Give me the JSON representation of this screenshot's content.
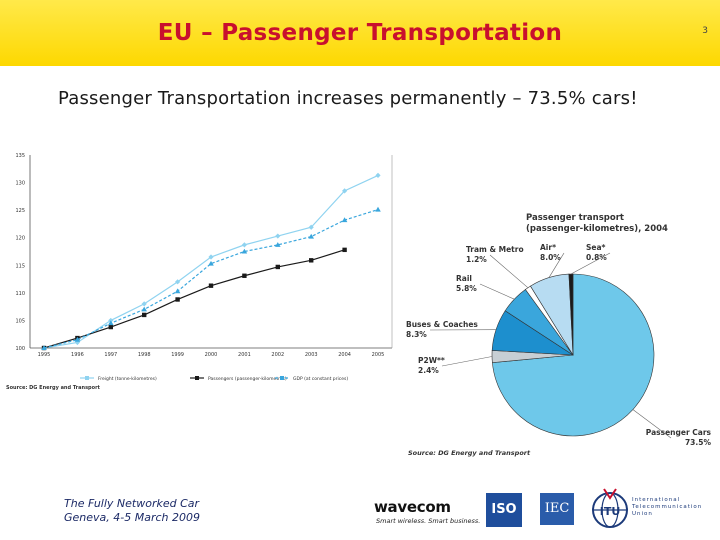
{
  "header": {
    "title": "EU – Passenger Transportation",
    "slide_number": "3"
  },
  "subtitle": "Passenger Transportation increases permanently – 73.5% cars!",
  "footer": {
    "event_line1": "The Fully Networked Car",
    "event_line2": "Geneva, 4-5 March 2009",
    "wavecom_name": "wavecom",
    "wavecom_tagline": "Smart wireless. Smart business.",
    "iso_label": "ISO",
    "iec_label": "IEC",
    "itu_label": "ITU",
    "itu_text": [
      "International",
      "Telecommunication",
      "Union"
    ]
  },
  "colors": {
    "header_bg": "#fdd800",
    "title": "#c8102e",
    "freight": "#8fd3f0",
    "passengers": "#1a1a1a",
    "gdp": "#39a6dd"
  },
  "chart_data": [
    {
      "type": "line",
      "title": "",
      "x": [
        "1995",
        "1996",
        "1997",
        "1998",
        "1999",
        "2000",
        "2001",
        "2002",
        "2003",
        "2004",
        "2005"
      ],
      "ylim": [
        100,
        135
      ],
      "yticks": [
        100,
        105,
        110,
        115,
        120,
        125,
        130,
        135
      ],
      "grid": false,
      "legend_placement": "bottom",
      "source": "Source: DG Energy and Transport",
      "series": [
        {
          "name": "Freight (tonne-kilometres)",
          "color": "#8fd3f0",
          "marker": "diamond",
          "values": [
            100,
            101,
            105,
            108,
            112,
            116.5,
            118.7,
            120.3,
            121.9,
            128.5,
            131.3
          ]
        },
        {
          "name": "Passengers (passenger-kilometres)",
          "color": "#1a1a1a",
          "marker": "square",
          "values": [
            100,
            101.8,
            103.8,
            106,
            108.8,
            111.3,
            113.1,
            114.7,
            115.9,
            117.8,
            null
          ]
        },
        {
          "name": "GDP (at constant prices)",
          "color": "#39a6dd",
          "marker": "triangle",
          "dashed": true,
          "values": [
            100,
            101.5,
            104.5,
            107,
            110.3,
            115.3,
            117.5,
            118.7,
            120.2,
            123.2,
            125.1
          ]
        }
      ]
    },
    {
      "type": "pie",
      "title": "Passenger transport\n(passenger-kilometres), 2004",
      "source": "Source: DG Energy and Transport",
      "slices": [
        {
          "label": "Passenger Cars",
          "value": 73.5,
          "display": "73.5%",
          "color": "#6ec8ea"
        },
        {
          "label": "P2W**",
          "value": 2.4,
          "display": "2.4%",
          "color": "#c7cfd4"
        },
        {
          "label": "Buses & Coaches",
          "value": 8.3,
          "display": "8.3%",
          "color": "#1d8fce"
        },
        {
          "label": "Rail",
          "value": 5.8,
          "display": "5.8%",
          "color": "#3aa6dc"
        },
        {
          "label": "Tram & Metro",
          "value": 1.2,
          "display": "1.2%",
          "color": "#ffffff"
        },
        {
          "label": "Air*",
          "value": 8.0,
          "display": "8.0%",
          "color": "#b7dcf2"
        },
        {
          "label": "Sea*",
          "value": 0.8,
          "display": "0.8%",
          "color": "#1a1a1a"
        }
      ]
    }
  ]
}
